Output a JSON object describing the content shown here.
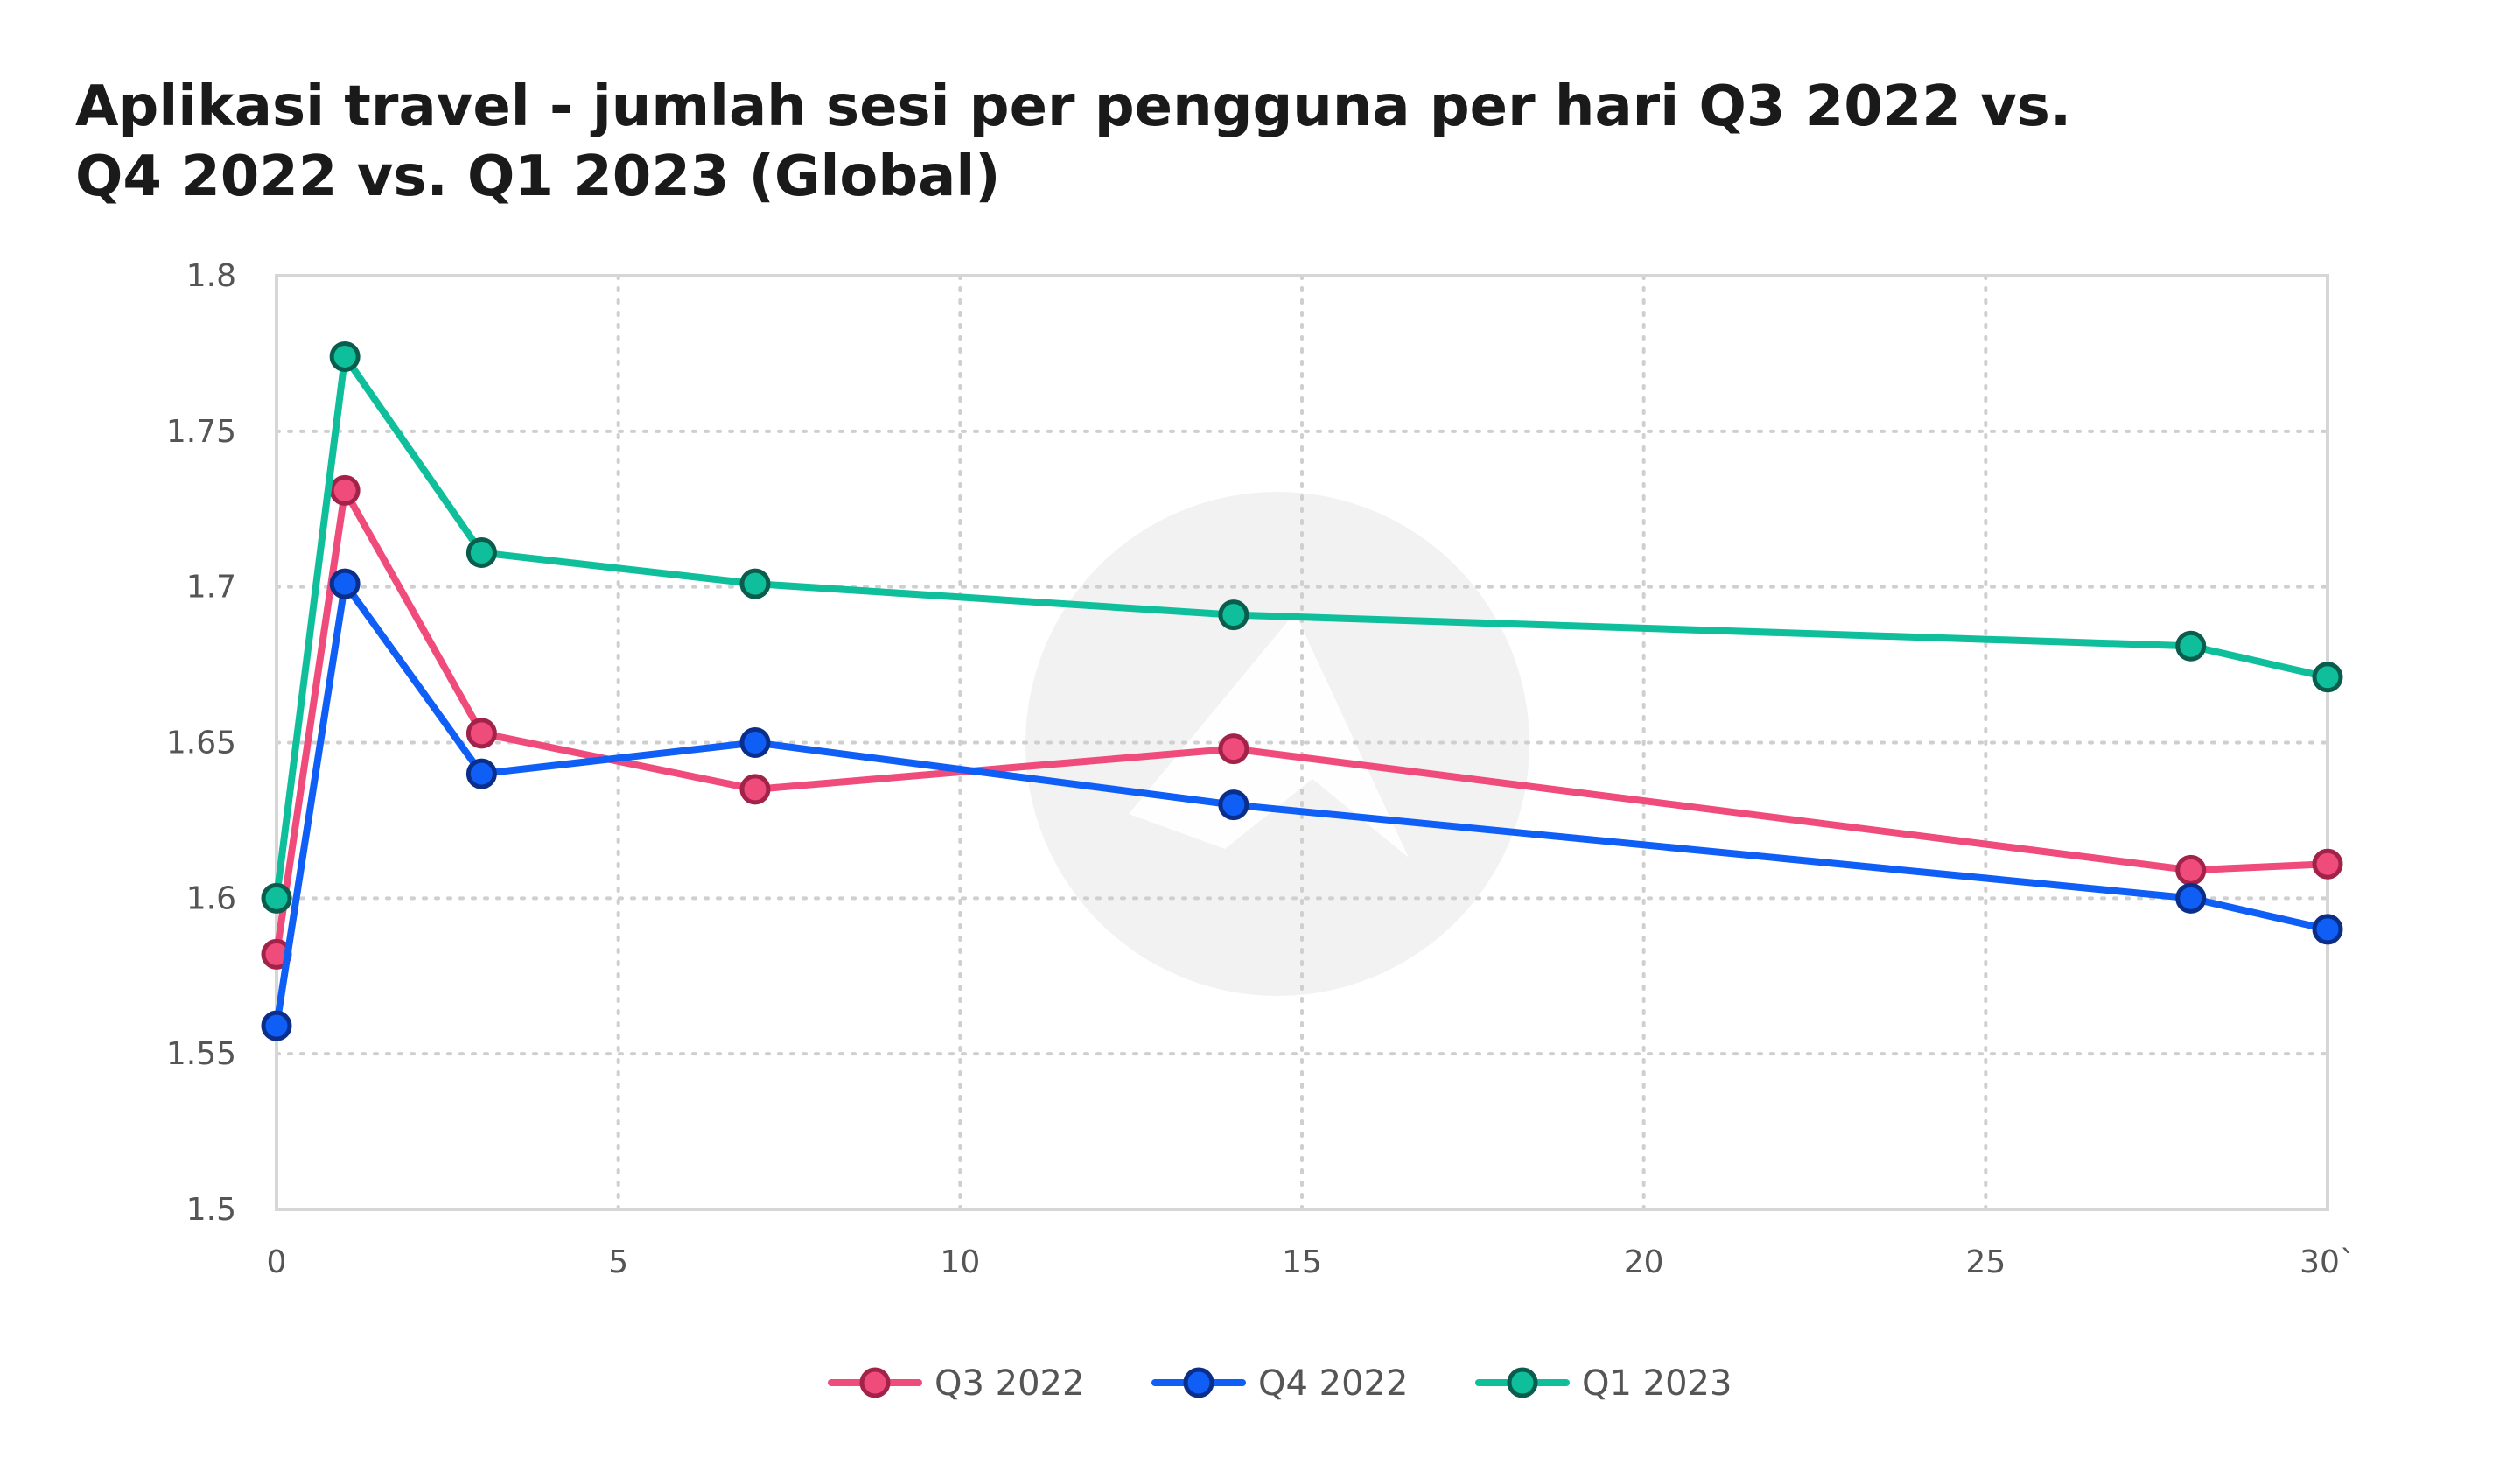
{
  "title_lines": [
    "Aplikasi travel - jumlah sesi per pengguna per hari Q3 2022 vs.",
    "Q4 2022 vs. Q1 2023 (Global)"
  ],
  "chart_data": {
    "type": "line",
    "title": "Aplikasi travel - jumlah sesi per pengguna per hari Q3 2022 vs. Q4 2022 vs. Q1 2023 (Global)",
    "xlabel": "",
    "ylabel": "",
    "xlim": [
      0,
      30
    ],
    "ylim": [
      1.5,
      1.8
    ],
    "x_ticks": [
      0,
      5,
      10,
      15,
      20,
      25,
      30
    ],
    "x_tick_labels": [
      "0",
      "5",
      "10",
      "15",
      "20",
      "25",
      "30`"
    ],
    "y_ticks": [
      1.5,
      1.55,
      1.6,
      1.65,
      1.7,
      1.75,
      1.8
    ],
    "y_tick_labels": [
      "1.5",
      "1.55",
      "1.6",
      "1.65",
      "1.7",
      "1.75",
      "1.8"
    ],
    "grid": true,
    "legend_position": "bottom-center",
    "x": [
      0,
      1,
      3,
      7,
      14,
      28,
      30
    ],
    "series": [
      {
        "name": "Q3 2022",
        "color": "#ef4b7b",
        "marker_stroke": "#a3224a",
        "values": [
          1.582,
          1.731,
          1.653,
          1.635,
          1.648,
          1.609,
          1.611
        ]
      },
      {
        "name": "Q4 2022",
        "color": "#0f5ef5",
        "marker_stroke": "#0a2e8a",
        "values": [
          1.559,
          1.701,
          1.64,
          1.65,
          1.63,
          1.6,
          1.59
        ]
      },
      {
        "name": "Q1 2023",
        "color": "#0fbf9b",
        "marker_stroke": "#0a5c4c",
        "values": [
          1.6,
          1.774,
          1.711,
          1.701,
          1.691,
          1.681,
          1.671
        ]
      }
    ]
  },
  "colors": {
    "grid": "#cfcfcf",
    "axis_frame": "#d6d6d6",
    "watermark": "#f2f2f2",
    "tick_text": "#555555",
    "title_text": "#1a1a1a"
  },
  "watermark_icon": "brand-logo-icon"
}
